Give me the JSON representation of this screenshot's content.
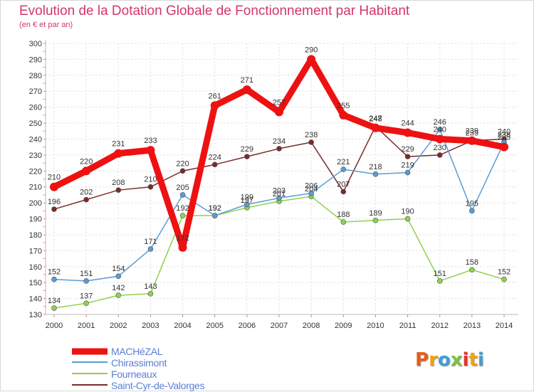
{
  "chart_data": {
    "type": "line",
    "title": "Evolution de la Dotation Globale de Fonctionnement par Habitant",
    "subtitle": "(en € et par an)",
    "xlabel": "",
    "ylabel": "",
    "categories": [
      "2000",
      "2001",
      "2002",
      "2003",
      "2004",
      "2005",
      "2006",
      "2007",
      "2008",
      "2009",
      "2010",
      "2011",
      "2012",
      "2013",
      "2014"
    ],
    "ylim": [
      130,
      300
    ],
    "yticks": [
      "130",
      "140",
      "150",
      "160",
      "170",
      "180",
      "190",
      "200",
      "210",
      "220",
      "230",
      "240",
      "250",
      "260",
      "270",
      "280",
      "290",
      "300"
    ],
    "grid": true,
    "legend_position": "bottom-left",
    "series": [
      {
        "name": "Saint-Cyr-de-Valorges",
        "color": "#7b2a2a",
        "values": [
          196,
          202,
          208,
          210,
          220,
          224,
          229,
          234,
          238,
          207,
          248,
          229,
          230,
          239,
          240
        ],
        "labels": [
          "196",
          "202",
          "208",
          "210",
          "220",
          "224",
          "229",
          "234",
          "238",
          "207",
          "248",
          "229",
          "230",
          "239",
          "240"
        ]
      },
      {
        "name": "Fourneaux",
        "color": "#8fd14f",
        "values": [
          134,
          137,
          142,
          143,
          192,
          192,
          197,
          201,
          204,
          188,
          189,
          190,
          151,
          158,
          152
        ],
        "labels": [
          "134",
          "137",
          "142",
          "143",
          "192",
          "192",
          "197",
          "201",
          "204",
          "188",
          "189",
          "190",
          "151",
          "158",
          "152"
        ]
      },
      {
        "name": "Chirassimont",
        "color": "#5b9bd5",
        "values": [
          152,
          151,
          154,
          171,
          205,
          192,
          199,
          203,
          206,
          221,
          218,
          219,
          246,
          195,
          238
        ],
        "labels": [
          "152",
          "151",
          "154",
          "171",
          "205",
          "192",
          "199",
          "203",
          "206",
          "221",
          "218",
          "219",
          "246",
          "195",
          "238"
        ]
      },
      {
        "name": "MACHéZAL",
        "color": "#ee1111",
        "values": [
          210,
          220,
          231,
          233,
          172,
          261,
          271,
          257,
          290,
          255,
          247,
          244,
          240,
          239,
          235
        ],
        "labels": [
          "210",
          "220",
          "231",
          "233",
          "172",
          "261",
          "271",
          "257",
          "290",
          "255",
          "247",
          "244",
          "240",
          "239",
          "235"
        ]
      }
    ]
  },
  "legend": {
    "items": [
      "MACHéZAL",
      "Chirassimont",
      "Fourneaux",
      "Saint-Cyr-de-Valorges"
    ]
  },
  "logo": {
    "letters": [
      "P",
      "r",
      "o",
      "x",
      "i",
      "t",
      "i"
    ],
    "colors": [
      "#e65c1c",
      "#f0a30a",
      "#3f9fd8",
      "#7cc242",
      "#e6332a",
      "#f0a30a",
      "#3f9fd8"
    ]
  }
}
